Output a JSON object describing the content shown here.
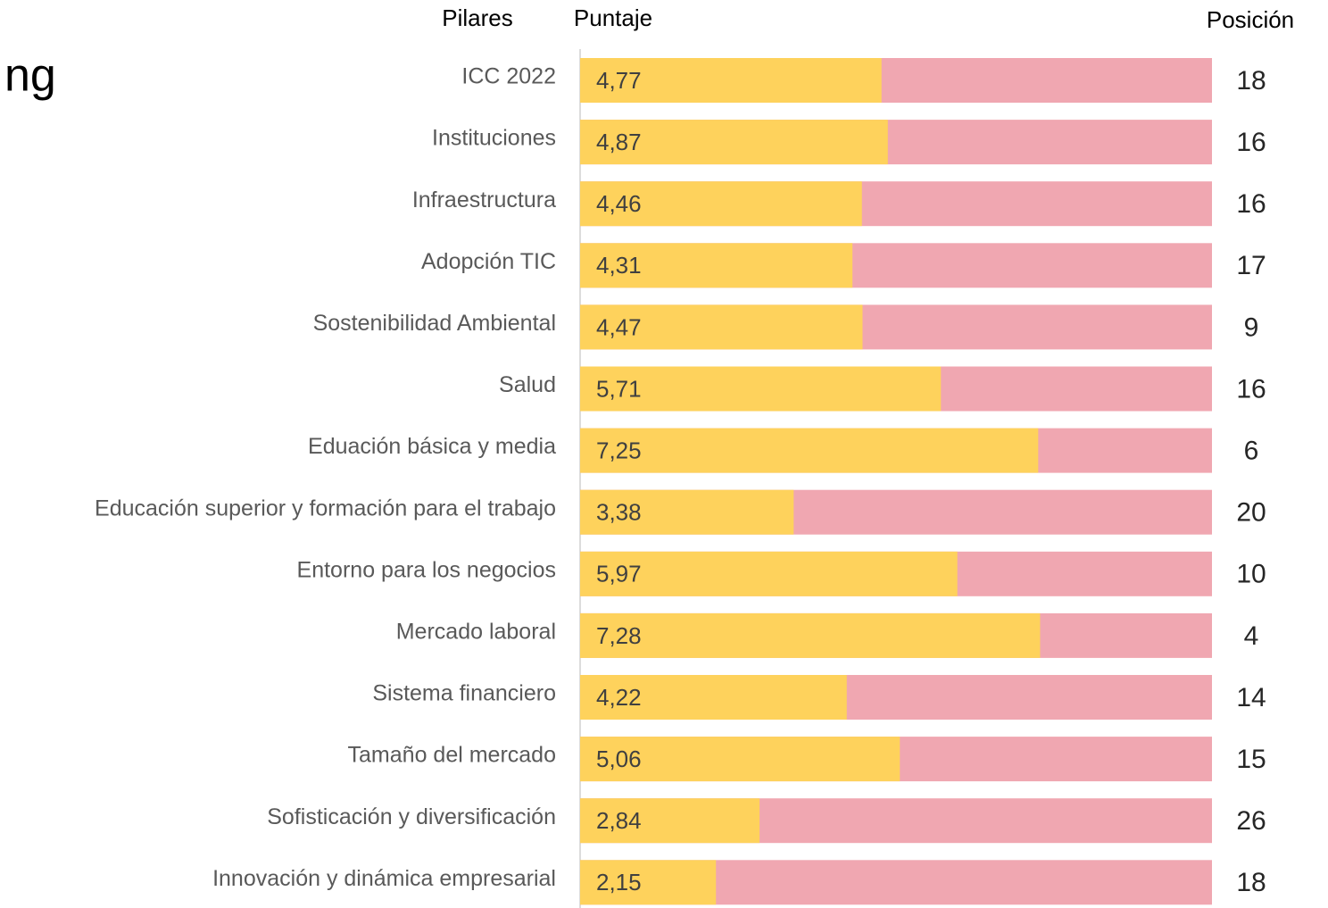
{
  "chart_data": {
    "type": "bar",
    "orientation": "horizontal",
    "title": "ng",
    "column_headers": [
      "Pilares",
      "Puntaje",
      "Posición"
    ],
    "categories": [
      "ICC 2022",
      "Instituciones",
      "Infraestructura",
      "Adopción TIC",
      "Sostenibilidad Ambiental",
      "Salud",
      "Eduación básica y media",
      "Educación superior y formación para el trabajo",
      "Entorno para los negocios",
      "Mercado laboral",
      "Sistema financiero",
      "Tamaño del mercado",
      "Sofisticación y diversificación",
      "Innovación y dinámica empresarial"
    ],
    "series": [
      {
        "name": "Puntaje",
        "color": "#fed25c",
        "values": [
          4.77,
          4.87,
          4.46,
          4.31,
          4.47,
          5.71,
          7.25,
          3.38,
          5.97,
          7.28,
          4.22,
          5.06,
          2.84,
          2.15
        ],
        "value_labels": [
          "4,77",
          "4,87",
          "4,46",
          "4,31",
          "4,47",
          "5,71",
          "7,25",
          "3,38",
          "5,97",
          "7,28",
          "4,22",
          "5,06",
          "2,84",
          "2,15"
        ]
      }
    ],
    "positions": [
      18,
      16,
      16,
      17,
      9,
      16,
      6,
      20,
      10,
      4,
      14,
      15,
      26,
      18
    ],
    "track_color": "#f0a7b1",
    "xlim": [
      0,
      10
    ]
  }
}
